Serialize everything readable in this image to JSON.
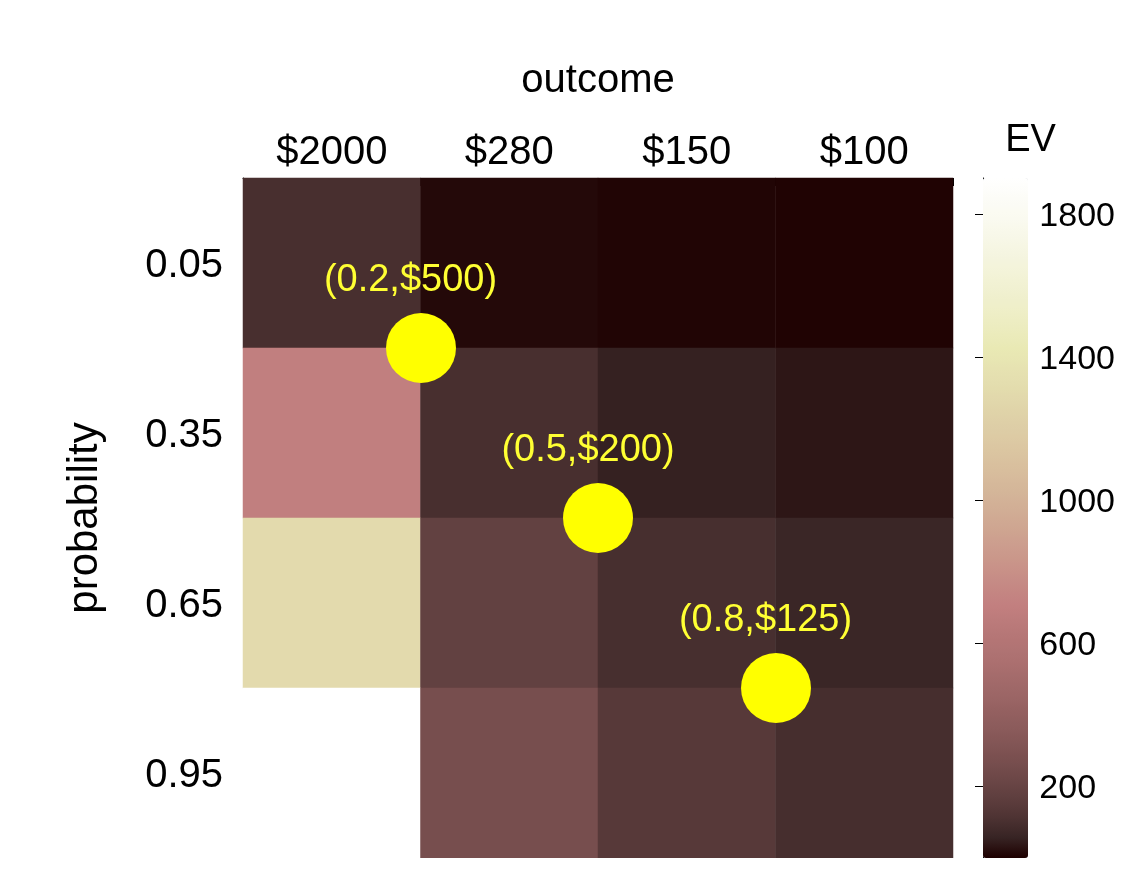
{
  "chart_data": {
    "type": "heatmap",
    "xlabel": "outcome",
    "ylabel": "probability",
    "clabel": "EV",
    "categories": [
      "$2000",
      "$280",
      "$150",
      "$100"
    ],
    "y_categories": [
      "0.05",
      "0.35",
      "0.65",
      "0.95"
    ],
    "cells": [
      [
        100,
        14,
        7.5,
        5
      ],
      [
        700,
        98,
        52.5,
        35
      ],
      [
        1300,
        182,
        97.5,
        65
      ],
      [
        1900,
        266,
        142.5,
        95
      ]
    ],
    "clim": [
      0,
      1900
    ],
    "cticks": [
      200,
      600,
      1000,
      1400,
      1800
    ],
    "annotations": [
      "(0.2,$500)",
      "(0.5,$200)",
      "(0.8,$125)"
    ]
  }
}
